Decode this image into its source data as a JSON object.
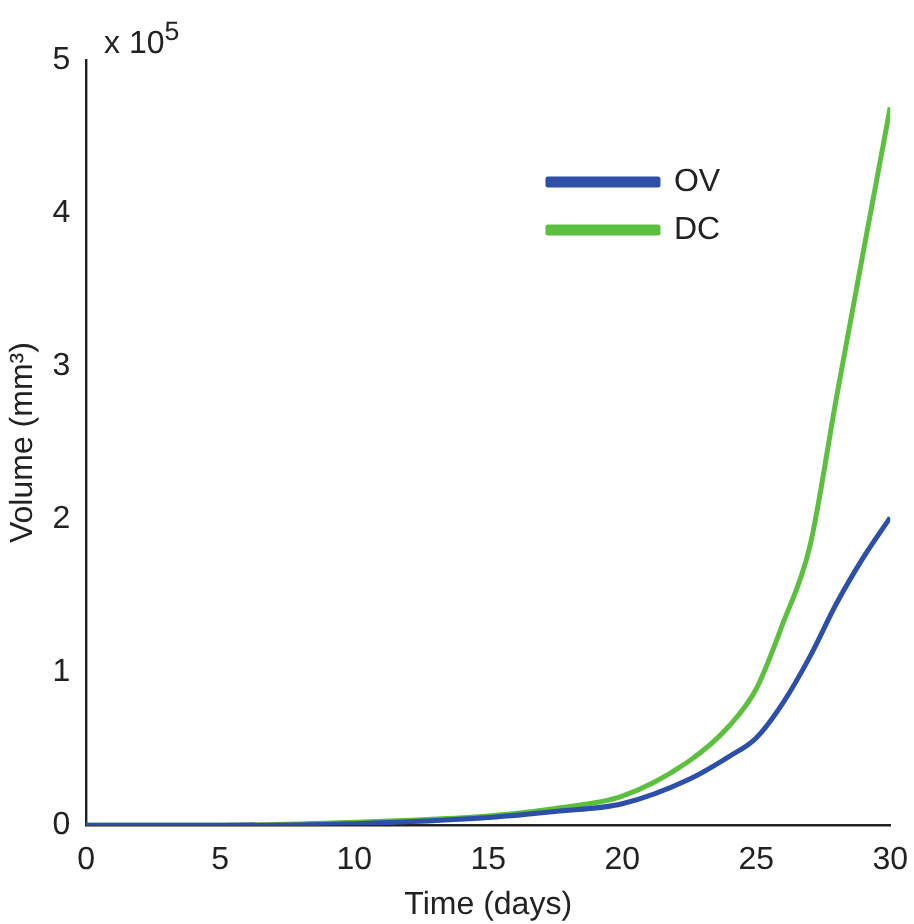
{
  "chart_data": {
    "type": "line",
    "xlabel": "Time (days)",
    "ylabel": "Volume (mm³)",
    "annotations": [
      "x 10$^{5}$"
    ],
    "series": [
      {
        "name": "OV",
        "color": "#2e4fa8",
        "x": [
          0,
          5,
          10,
          15,
          17.5,
          20,
          22.5,
          24,
          25,
          26,
          27,
          28,
          29,
          30
        ],
        "values": [
          0,
          0,
          0.01,
          0.05,
          0.09,
          0.14,
          0.3,
          0.45,
          0.57,
          0.8,
          1.1,
          1.45,
          1.75,
          2.01
        ]
      },
      {
        "name": "DC",
        "color": "#5dbf3f",
        "x": [
          0,
          5,
          10,
          15,
          17.5,
          20,
          22.5,
          24,
          25,
          26,
          27,
          28,
          29,
          30
        ],
        "values": [
          0,
          0,
          0.02,
          0.06,
          0.11,
          0.19,
          0.42,
          0.65,
          0.89,
          1.32,
          1.82,
          2.8,
          3.75,
          4.69
        ]
      }
    ],
    "xlim": [
      0,
      30
    ],
    "xticks": [
      0,
      5,
      10,
      15,
      20,
      25,
      30
    ],
    "ylim": [
      0,
      5
    ],
    "yticks": [
      0,
      1,
      2,
      3,
      4,
      5
    ],
    "legend": "top right",
    "grid": false,
    "marker": "none",
    "line_style": "solid"
  }
}
